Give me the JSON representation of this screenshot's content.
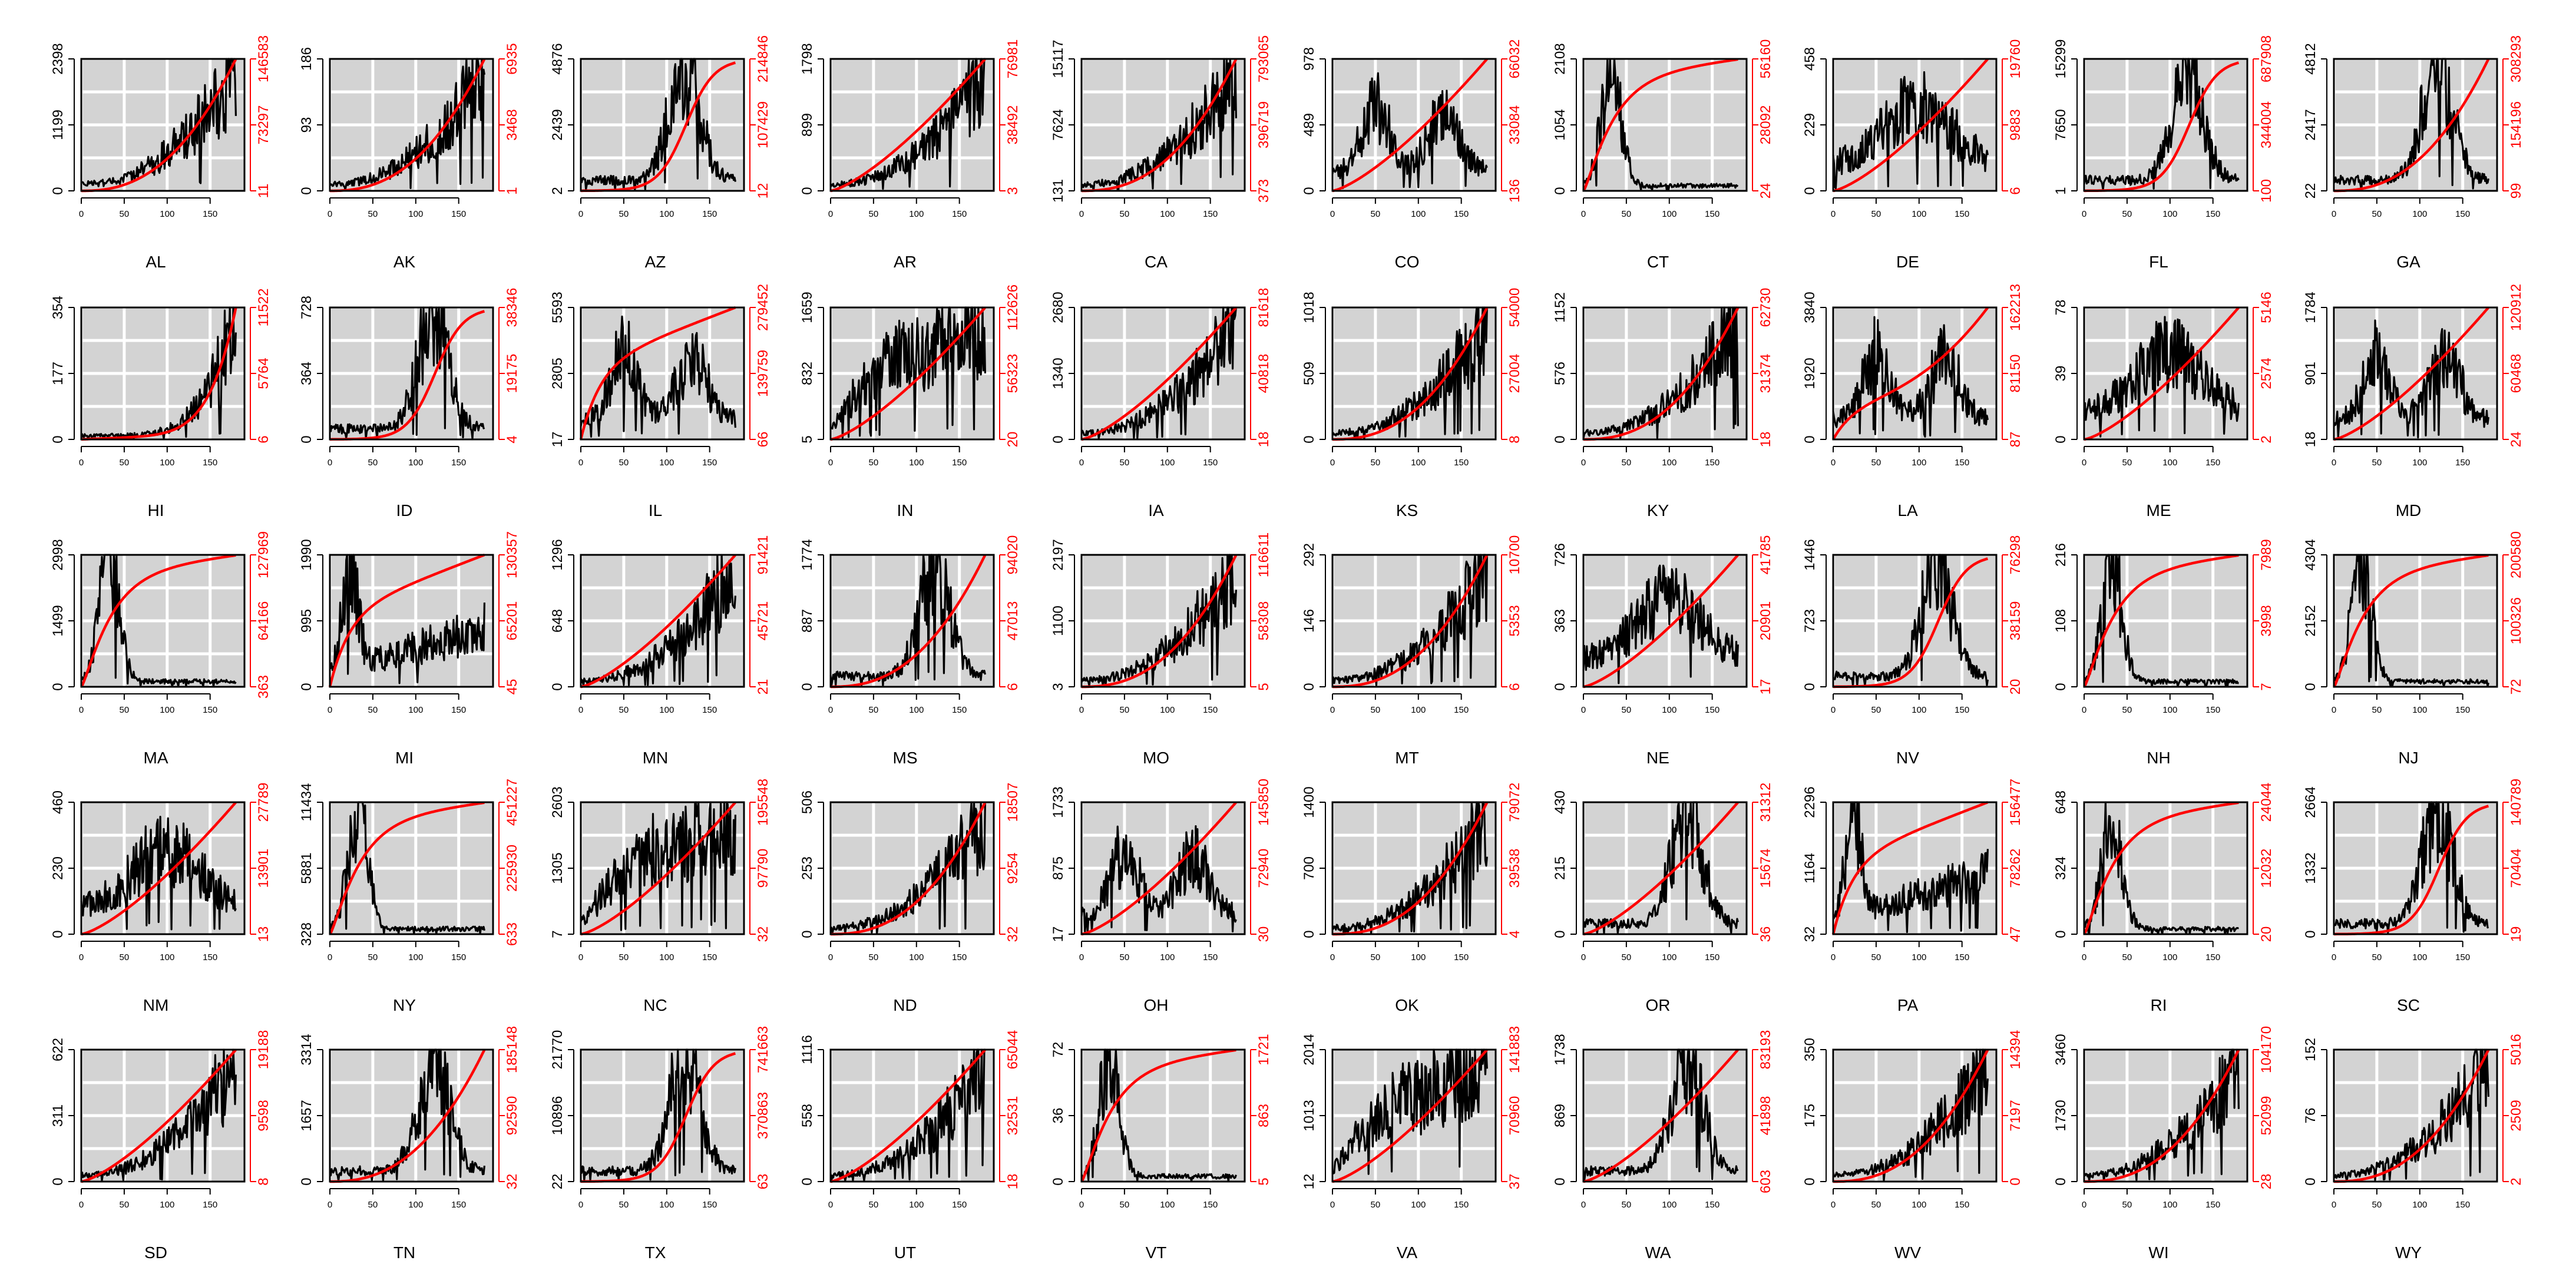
{
  "colors": {
    "panel_bg": "#d3d3d3",
    "grid": "#ffffff",
    "daily_line": "#000000",
    "cumulative_line": "#ff0000",
    "axis_left": "#000000",
    "axis_right": "#ff0000"
  },
  "chart_data": {
    "type": "line",
    "layout": {
      "rows": 5,
      "cols": 10
    },
    "x_axis": {
      "range": [
        0,
        190
      ],
      "ticks": [
        0,
        50,
        100,
        150
      ]
    },
    "series_legend": "",
    "panels": [
      {
        "state": "AL",
        "left": [
          0,
          1199,
          2398
        ],
        "right": [
          11,
          73297,
          146583
        ],
        "daily_shape": "late",
        "cum_shape": "late"
      },
      {
        "state": "AK",
        "left": [
          0,
          93,
          186
        ],
        "right": [
          1,
          3468,
          6935
        ],
        "daily_shape": "late",
        "cum_shape": "late"
      },
      {
        "state": "AZ",
        "left": [
          2,
          2439,
          4876
        ],
        "right": [
          12,
          107429,
          214846
        ],
        "daily_shape": "summer_peak",
        "cum_shape": "summer"
      },
      {
        "state": "AR",
        "left": [
          0,
          899,
          1798
        ],
        "right": [
          3,
          38492,
          76981
        ],
        "daily_shape": "late",
        "cum_shape": "steady"
      },
      {
        "state": "CA",
        "left": [
          131,
          7624,
          15117
        ],
        "right": [
          373,
          396719,
          793065
        ],
        "daily_shape": "late",
        "cum_shape": "late"
      },
      {
        "state": "CO",
        "left": [
          0,
          489,
          978
        ],
        "right": [
          136,
          33084,
          66032
        ],
        "daily_shape": "twin",
        "cum_shape": "steady"
      },
      {
        "state": "CT",
        "left": [
          0,
          1054,
          2108
        ],
        "right": [
          24,
          28092,
          56160
        ],
        "daily_shape": "early",
        "cum_shape": "early"
      },
      {
        "state": "DE",
        "left": [
          0,
          229,
          458
        ],
        "right": [
          6,
          9883,
          19760
        ],
        "daily_shape": "noisy_mid",
        "cum_shape": "steady"
      },
      {
        "state": "FL",
        "left": [
          1,
          7650,
          15299
        ],
        "right": [
          100,
          344004,
          687908
        ],
        "daily_shape": "summer_peak",
        "cum_shape": "summer"
      },
      {
        "state": "GA",
        "left": [
          22,
          2417,
          4812
        ],
        "right": [
          99,
          154196,
          308293
        ],
        "daily_shape": "summer_peak",
        "cum_shape": "late"
      },
      {
        "state": "HI",
        "left": [
          0,
          177,
          354
        ],
        "right": [
          6,
          5764,
          11522
        ],
        "daily_shape": "very_late",
        "cum_shape": "very_late"
      },
      {
        "state": "ID",
        "left": [
          0,
          364,
          728
        ],
        "right": [
          4,
          19175,
          38346
        ],
        "daily_shape": "summer_peak",
        "cum_shape": "summer"
      },
      {
        "state": "IL",
        "left": [
          17,
          2805,
          5593
        ],
        "right": [
          66,
          139759,
          279452
        ],
        "daily_shape": "twin",
        "cum_shape": "early_then_steady"
      },
      {
        "state": "IN",
        "left": [
          5,
          832,
          1659
        ],
        "right": [
          20,
          56323,
          112626
        ],
        "daily_shape": "plateau",
        "cum_shape": "steady"
      },
      {
        "state": "IA",
        "left": [
          0,
          1340,
          2680
        ],
        "right": [
          18,
          40818,
          81618
        ],
        "daily_shape": "late",
        "cum_shape": "steady"
      },
      {
        "state": "KS",
        "left": [
          0,
          509,
          1018
        ],
        "right": [
          8,
          27004,
          54000
        ],
        "daily_shape": "late",
        "cum_shape": "late"
      },
      {
        "state": "KY",
        "left": [
          0,
          576,
          1152
        ],
        "right": [
          18,
          31374,
          62730
        ],
        "daily_shape": "late",
        "cum_shape": "late"
      },
      {
        "state": "LA",
        "left": [
          0,
          1920,
          3840
        ],
        "right": [
          87,
          81150,
          162213
        ],
        "daily_shape": "twin",
        "cum_shape": "twin"
      },
      {
        "state": "ME",
        "left": [
          0,
          39,
          78
        ],
        "right": [
          2,
          2574,
          5146
        ],
        "daily_shape": "noisy_mid",
        "cum_shape": "steady"
      },
      {
        "state": "MD",
        "left": [
          18,
          901,
          1784
        ],
        "right": [
          24,
          60468,
          120912
        ],
        "daily_shape": "twin",
        "cum_shape": "steady"
      },
      {
        "state": "MA",
        "left": [
          0,
          1499,
          2998
        ],
        "right": [
          363,
          64166,
          127969
        ],
        "daily_shape": "early",
        "cum_shape": "early"
      },
      {
        "state": "MI",
        "left": [
          0,
          995,
          1990
        ],
        "right": [
          45,
          65201,
          130357
        ],
        "daily_shape": "early_then_rise",
        "cum_shape": "early_then_steady"
      },
      {
        "state": "MN",
        "left": [
          0,
          648,
          1296
        ],
        "right": [
          21,
          45721,
          91421
        ],
        "daily_shape": "late",
        "cum_shape": "steady"
      },
      {
        "state": "MS",
        "left": [
          0,
          887,
          1774
        ],
        "right": [
          6,
          47013,
          94020
        ],
        "daily_shape": "summer_peak",
        "cum_shape": "late"
      },
      {
        "state": "MO",
        "left": [
          3,
          1100,
          2197
        ],
        "right": [
          5,
          58308,
          116611
        ],
        "daily_shape": "late",
        "cum_shape": "late"
      },
      {
        "state": "MT",
        "left": [
          0,
          146,
          292
        ],
        "right": [
          6,
          5353,
          10700
        ],
        "daily_shape": "late",
        "cum_shape": "late"
      },
      {
        "state": "NE",
        "left": [
          0,
          363,
          726
        ],
        "right": [
          17,
          20901,
          41785
        ],
        "daily_shape": "noisy_mid",
        "cum_shape": "steady"
      },
      {
        "state": "NV",
        "left": [
          0,
          723,
          1446
        ],
        "right": [
          20,
          38159,
          76298
        ],
        "daily_shape": "summer_peak",
        "cum_shape": "summer"
      },
      {
        "state": "NH",
        "left": [
          0,
          108,
          216
        ],
        "right": [
          7,
          3998,
          7989
        ],
        "daily_shape": "early",
        "cum_shape": "early"
      },
      {
        "state": "NJ",
        "left": [
          0,
          2152,
          4304
        ],
        "right": [
          72,
          100326,
          200580
        ],
        "daily_shape": "early",
        "cum_shape": "early"
      },
      {
        "state": "NM",
        "left": [
          0,
          230,
          460
        ],
        "right": [
          13,
          13901,
          27789
        ],
        "daily_shape": "noisy_mid",
        "cum_shape": "steady"
      },
      {
        "state": "NY",
        "left": [
          328,
          5881,
          11434
        ],
        "right": [
          633,
          225930,
          451227
        ],
        "daily_shape": "early",
        "cum_shape": "early"
      },
      {
        "state": "NC",
        "left": [
          7,
          1305,
          2603
        ],
        "right": [
          32,
          97790,
          195548
        ],
        "daily_shape": "plateau",
        "cum_shape": "steady"
      },
      {
        "state": "ND",
        "left": [
          0,
          253,
          506
        ],
        "right": [
          32,
          9254,
          18507
        ],
        "daily_shape": "late",
        "cum_shape": "late"
      },
      {
        "state": "OH",
        "left": [
          17,
          875,
          1733
        ],
        "right": [
          30,
          72940,
          145850
        ],
        "daily_shape": "twin",
        "cum_shape": "steady"
      },
      {
        "state": "OK",
        "left": [
          0,
          700,
          1400
        ],
        "right": [
          4,
          39538,
          79072
        ],
        "daily_shape": "late",
        "cum_shape": "late"
      },
      {
        "state": "OR",
        "left": [
          0,
          215,
          430
        ],
        "right": [
          36,
          15674,
          31312
        ],
        "daily_shape": "summer_peak",
        "cum_shape": "steady"
      },
      {
        "state": "PA",
        "left": [
          32,
          1164,
          2296
        ],
        "right": [
          47,
          78262,
          156477
        ],
        "daily_shape": "early_then_rise",
        "cum_shape": "early_then_steady"
      },
      {
        "state": "RI",
        "left": [
          0,
          324,
          648
        ],
        "right": [
          20,
          12032,
          24044
        ],
        "daily_shape": "early",
        "cum_shape": "early"
      },
      {
        "state": "SC",
        "left": [
          0,
          1332,
          2664
        ],
        "right": [
          19,
          70404,
          140789
        ],
        "daily_shape": "summer_peak",
        "cum_shape": "summer"
      },
      {
        "state": "SD",
        "left": [
          0,
          311,
          622
        ],
        "right": [
          8,
          9598,
          19188
        ],
        "daily_shape": "late",
        "cum_shape": "steady"
      },
      {
        "state": "TN",
        "left": [
          0,
          1657,
          3314
        ],
        "right": [
          32,
          92590,
          185148
        ],
        "daily_shape": "summer_peak",
        "cum_shape": "late"
      },
      {
        "state": "TX",
        "left": [
          22,
          10896,
          21770
        ],
        "right": [
          63,
          370863,
          741663
        ],
        "daily_shape": "summer_peak",
        "cum_shape": "summer"
      },
      {
        "state": "UT",
        "left": [
          0,
          558,
          1116
        ],
        "right": [
          18,
          32531,
          65044
        ],
        "daily_shape": "late",
        "cum_shape": "steady"
      },
      {
        "state": "VT",
        "left": [
          0,
          36,
          72
        ],
        "right": [
          5,
          863,
          1721
        ],
        "daily_shape": "early",
        "cum_shape": "early"
      },
      {
        "state": "VA",
        "left": [
          12,
          1013,
          2014
        ],
        "right": [
          37,
          70960,
          141883
        ],
        "daily_shape": "plateau",
        "cum_shape": "steady"
      },
      {
        "state": "WA",
        "left": [
          0,
          869,
          1738
        ],
        "right": [
          603,
          41898,
          83193
        ],
        "daily_shape": "summer_peak",
        "cum_shape": "steady"
      },
      {
        "state": "WV",
        "left": [
          0,
          175,
          350
        ],
        "right": [
          0,
          7197,
          14394
        ],
        "daily_shape": "late",
        "cum_shape": "late"
      },
      {
        "state": "WI",
        "left": [
          0,
          1730,
          3460
        ],
        "right": [
          28,
          52099,
          104170
        ],
        "daily_shape": "late",
        "cum_shape": "late"
      },
      {
        "state": "WY",
        "left": [
          0,
          76,
          152
        ],
        "right": [
          2,
          2509,
          5016
        ],
        "daily_shape": "late",
        "cum_shape": "late"
      }
    ]
  }
}
